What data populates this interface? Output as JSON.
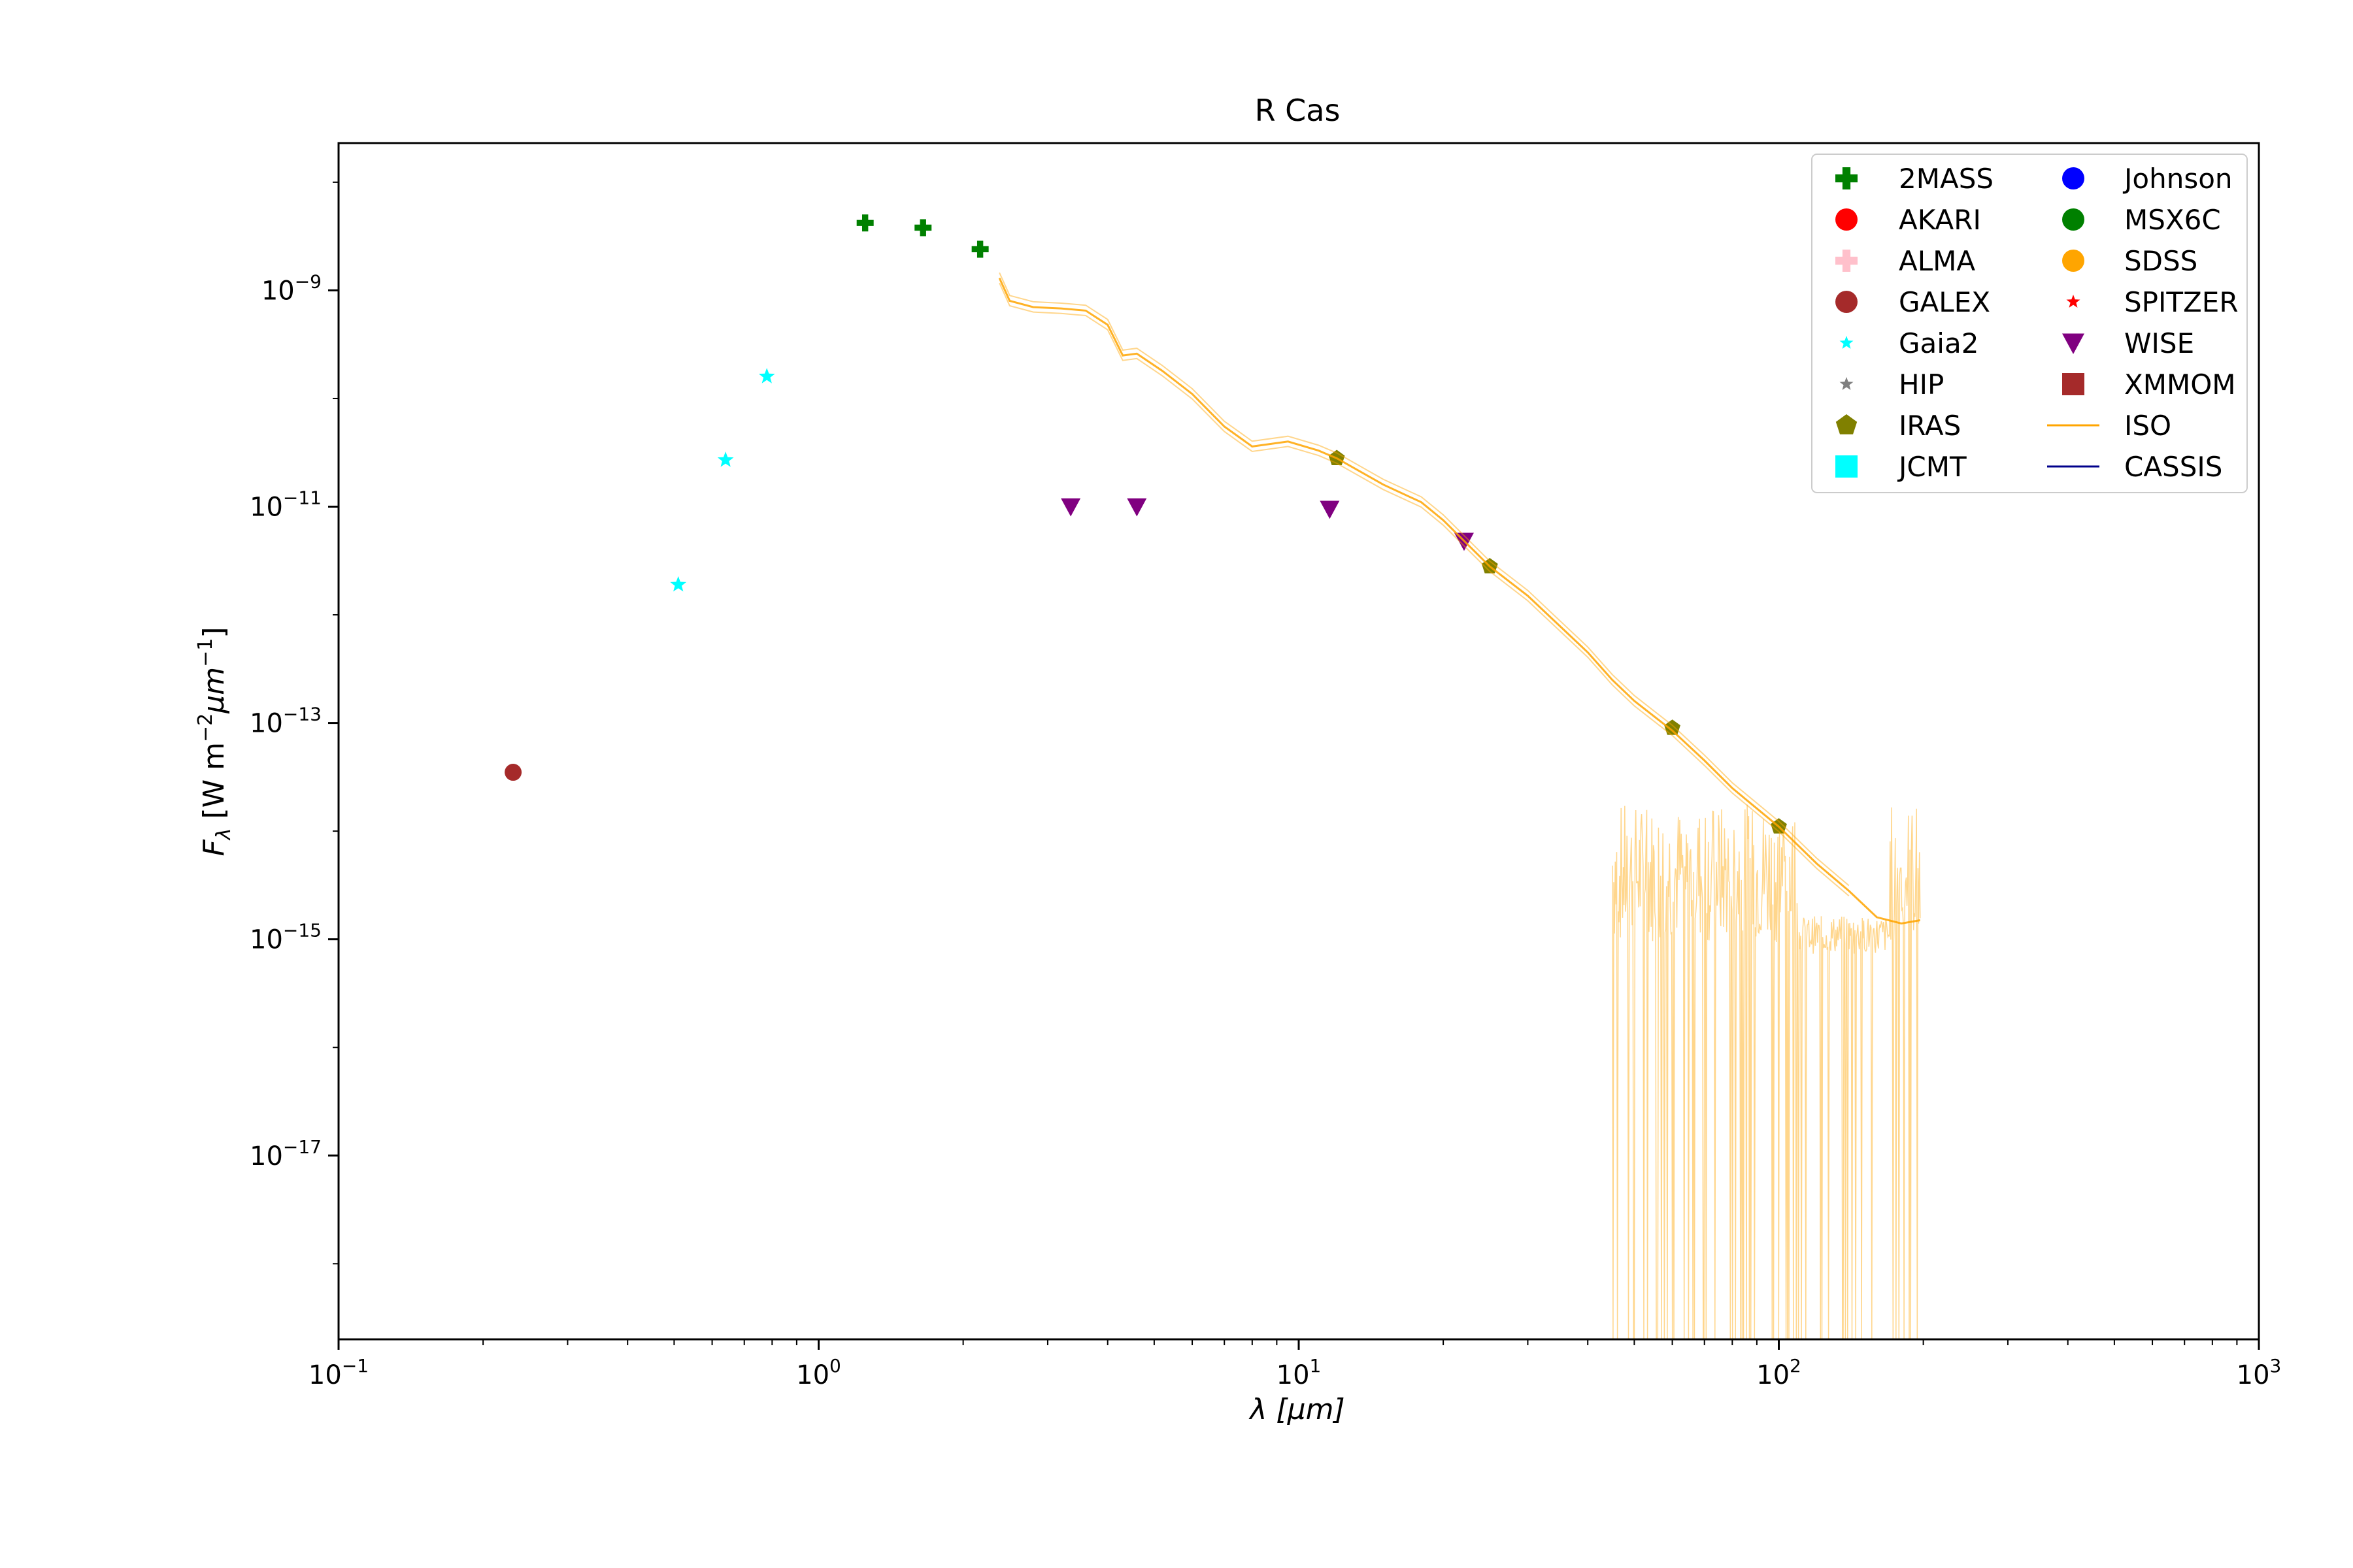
{
  "chart_data": {
    "type": "scatter",
    "title": "R Cas",
    "xlabel": "λ [μm]",
    "ylabel": "Fλ [W m⁻² μm⁻¹]",
    "xscale": "log",
    "yscale": "log",
    "xlim": [
      0.1,
      1000
    ],
    "ylim": [
      2e-19,
      2.3e-08
    ],
    "x_ticks": [
      {
        "value": 0.1,
        "base": "10",
        "exp": "−1"
      },
      {
        "value": 1,
        "base": "10",
        "exp": "0"
      },
      {
        "value": 10,
        "base": "10",
        "exp": "1"
      },
      {
        "value": 100,
        "base": "10",
        "exp": "2"
      },
      {
        "value": 1000,
        "base": "10",
        "exp": "3"
      }
    ],
    "y_ticks": [
      {
        "value": 1e-09,
        "base": "10",
        "exp": "−9"
      },
      {
        "value": 1e-11,
        "base": "10",
        "exp": "−11"
      },
      {
        "value": 1e-13,
        "base": "10",
        "exp": "−13"
      },
      {
        "value": 1e-15,
        "base": "10",
        "exp": "−15"
      },
      {
        "value": 1e-17,
        "base": "10",
        "exp": "−17"
      }
    ],
    "grid": false,
    "legend_placement": "top-right",
    "series": [
      {
        "name": "2MASS",
        "marker": "plus",
        "color": "#008000",
        "points": [
          {
            "x": 1.25,
            "y": 4.2e-09
          },
          {
            "x": 1.65,
            "y": 3.8e-09
          },
          {
            "x": 2.17,
            "y": 2.4e-09
          }
        ]
      },
      {
        "name": "AKARI",
        "marker": "circle",
        "color": "#ff0000",
        "points": []
      },
      {
        "name": "ALMA",
        "marker": "plus",
        "color": "#ffc0cb",
        "points": []
      },
      {
        "name": "GALEX",
        "marker": "circle",
        "color": "#a52a2a",
        "points": [
          {
            "x": 0.231,
            "y": 3.5e-14
          }
        ]
      },
      {
        "name": "Gaia2",
        "marker": "star",
        "color": "#00ffff",
        "points": [
          {
            "x": 0.51,
            "y": 1.9e-12
          },
          {
            "x": 0.64,
            "y": 2.7e-11
          },
          {
            "x": 0.78,
            "y": 1.6e-10
          }
        ]
      },
      {
        "name": "HIP",
        "marker": "star",
        "color": "#808080",
        "points": []
      },
      {
        "name": "IRAS",
        "marker": "pentagon",
        "color": "#808000",
        "points": [
          {
            "x": 12,
            "y": 2.8e-11
          },
          {
            "x": 25,
            "y": 2.8e-12
          },
          {
            "x": 60,
            "y": 9e-14
          },
          {
            "x": 100,
            "y": 1.1e-14
          }
        ]
      },
      {
        "name": "JCMT",
        "marker": "square",
        "color": "#00ffff",
        "points": []
      },
      {
        "name": "Johnson",
        "marker": "circle",
        "color": "#0000ff",
        "points": []
      },
      {
        "name": "MSX6C",
        "marker": "circle",
        "color": "#008000",
        "points": []
      },
      {
        "name": "SDSS",
        "marker": "circle",
        "color": "#ffa500",
        "points": []
      },
      {
        "name": "SPITZER",
        "marker": "star",
        "color": "#ff0000",
        "points": []
      },
      {
        "name": "WISE",
        "marker": "triangle-down",
        "color": "#800080",
        "points": [
          {
            "x": 3.35,
            "y": 1e-11
          },
          {
            "x": 4.6,
            "y": 1e-11
          },
          {
            "x": 11.6,
            "y": 9.5e-12
          },
          {
            "x": 22.1,
            "y": 4.8e-12
          }
        ]
      },
      {
        "name": "XMMOM",
        "marker": "square",
        "color": "#a52a2a",
        "points": []
      },
      {
        "name": "ISO",
        "marker": "line",
        "color": "#ffa500",
        "points": [
          {
            "x": 2.38,
            "y": 1.3e-09
          },
          {
            "x": 2.5,
            "y": 8e-10
          },
          {
            "x": 2.8,
            "y": 7e-10
          },
          {
            "x": 3.2,
            "y": 6.8e-10
          },
          {
            "x": 3.6,
            "y": 6.5e-10
          },
          {
            "x": 4.0,
            "y": 4.8e-10
          },
          {
            "x": 4.3,
            "y": 2.5e-10
          },
          {
            "x": 4.6,
            "y": 2.6e-10
          },
          {
            "x": 5.2,
            "y": 1.8e-10
          },
          {
            "x": 6.0,
            "y": 1.1e-10
          },
          {
            "x": 7.0,
            "y": 5.5e-11
          },
          {
            "x": 8.0,
            "y": 3.6e-11
          },
          {
            "x": 9.5,
            "y": 4e-11
          },
          {
            "x": 11.0,
            "y": 3.3e-11
          },
          {
            "x": 12.0,
            "y": 2.8e-11
          },
          {
            "x": 15.0,
            "y": 1.6e-11
          },
          {
            "x": 18.0,
            "y": 1.1e-11
          },
          {
            "x": 20.0,
            "y": 7.5e-12
          },
          {
            "x": 25.0,
            "y": 2.8e-12
          },
          {
            "x": 30.0,
            "y": 1.5e-12
          },
          {
            "x": 40.0,
            "y": 4.5e-13
          },
          {
            "x": 45.0,
            "y": 2.5e-13
          },
          {
            "x": 50.0,
            "y": 1.6e-13
          },
          {
            "x": 60.0,
            "y": 8.5e-14
          },
          {
            "x": 70.0,
            "y": 4.5e-14
          },
          {
            "x": 80.0,
            "y": 2.5e-14
          },
          {
            "x": 100.0,
            "y": 1.1e-14
          },
          {
            "x": 120.0,
            "y": 5e-15
          },
          {
            "x": 140.0,
            "y": 2.8e-15
          },
          {
            "x": 160.0,
            "y": 1.6e-15
          },
          {
            "x": 180.0,
            "y": 1.4e-15
          },
          {
            "x": 197.0,
            "y": 1.5e-15
          }
        ]
      },
      {
        "name": "CASSIS",
        "marker": "line",
        "color": "#00008b",
        "points": []
      }
    ]
  }
}
